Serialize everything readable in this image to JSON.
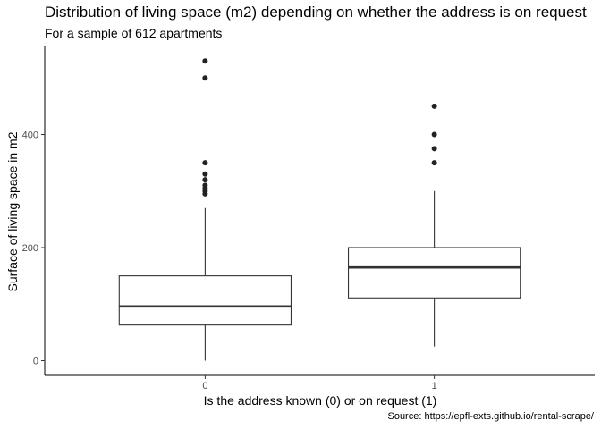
{
  "chart_data": {
    "type": "boxplot",
    "title": "Distribution of living space (m2) depending on whether the address is on request",
    "subtitle": "For a sample of 612 apartments",
    "xlabel": "Is the address known (0) or on request (1)",
    "ylabel": "Surface of living space in m2",
    "caption": "Source: https://epfl-exts.github.io/rental-scrape/",
    "categories": [
      "0",
      "1"
    ],
    "ylim": [
      -25,
      555
    ],
    "yticks": [
      0,
      200,
      400
    ],
    "grid": false,
    "boxes": [
      {
        "category": "0",
        "min": 0,
        "q1": 63,
        "median": 96,
        "q3": 150,
        "max": 270,
        "outliers": [
          295,
          300,
          305,
          310,
          320,
          330,
          350,
          500,
          530
        ]
      },
      {
        "category": "1",
        "min": 25,
        "q1": 111,
        "median": 165,
        "q3": 200,
        "max": 300,
        "outliers": [
          350,
          375,
          400,
          450
        ]
      }
    ]
  }
}
